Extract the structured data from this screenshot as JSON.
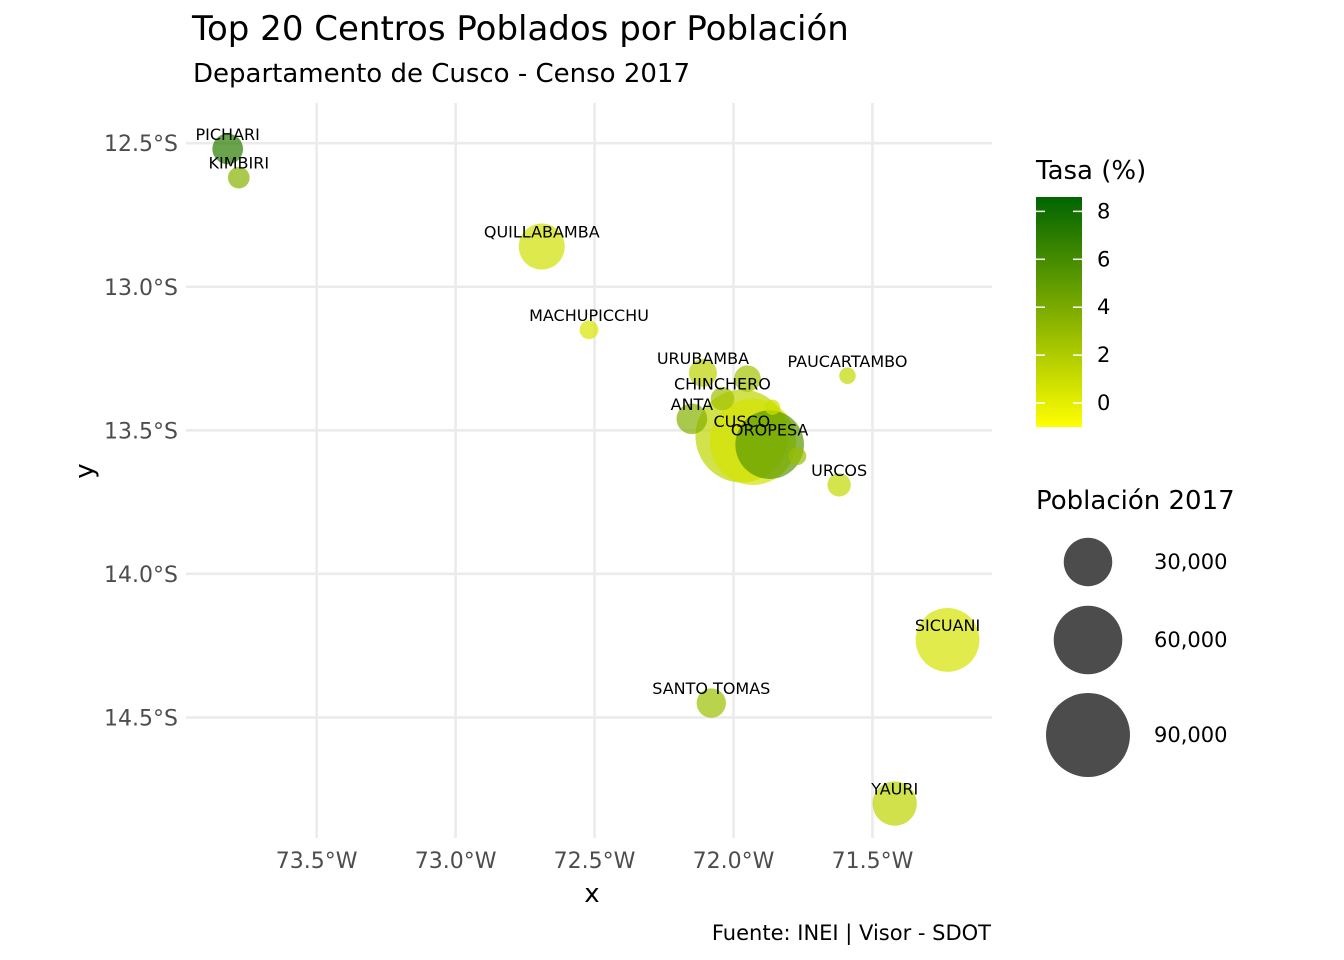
{
  "chart_data": {
    "type": "scatter",
    "title": "Top 20 Centros Poblados por Población",
    "subtitle": "Departamento de Cusco - Censo 2017",
    "caption": "Fuente: INEI | Visor - SDOT",
    "xlabel": "x",
    "ylabel": "y",
    "x_ticks": [
      "73.5°W",
      "73.0°W",
      "72.5°W",
      "72.0°W",
      "71.5°W"
    ],
    "x_tick_values": [
      -73.5,
      -73.0,
      -72.5,
      -72.0,
      -71.5
    ],
    "y_ticks": [
      "12.5°S",
      "13.0°S",
      "13.5°S",
      "14.0°S",
      "14.5°S"
    ],
    "y_tick_values": [
      -12.5,
      -13.0,
      -13.5,
      -14.0,
      -14.5
    ],
    "xlim": [
      -73.97,
      -71.07
    ],
    "ylim": [
      -14.92,
      -12.36
    ],
    "grid": true,
    "color_legend": {
      "title": "Tasa (%)",
      "ticks": [
        "8",
        "6",
        "4",
        "2",
        "0"
      ],
      "tick_values": [
        8,
        6,
        4,
        2,
        0
      ],
      "range": [
        -1,
        8.6
      ],
      "colors": [
        "#ffff00",
        "#7fad00",
        "#006400"
      ]
    },
    "size_legend": {
      "title": "Población 2017",
      "labels": [
        "30,000",
        "60,000",
        "90,000"
      ],
      "values": [
        30000,
        60000,
        90000
      ]
    },
    "points": [
      {
        "label": "PICHARI",
        "x": -73.82,
        "y": -12.52,
        "population": 12000,
        "rate": 7.0
      },
      {
        "label": "KIMBIRI",
        "x": -73.78,
        "y": -12.62,
        "population": 6000,
        "rate": 3.5
      },
      {
        "label": "QUILLABAMBA",
        "x": -72.69,
        "y": -12.86,
        "population": 27000,
        "rate": 0.8
      },
      {
        "label": "MACHUPICCHU",
        "x": -72.52,
        "y": -13.15,
        "population": 4500,
        "rate": 0.5
      },
      {
        "label": "URUBAMBA",
        "x": -72.11,
        "y": -13.3,
        "population": 10000,
        "rate": 1.6
      },
      {
        "label": "",
        "x": -71.95,
        "y": -13.32,
        "population": 9000,
        "rate": 2.5
      },
      {
        "label": "PAUCARTAMBO",
        "x": -71.59,
        "y": -13.31,
        "population": 3500,
        "rate": 1.3
      },
      {
        "label": "CHINCHERO",
        "x": -72.04,
        "y": -13.39,
        "population": 7000,
        "rate": 2.6
      },
      {
        "label": "",
        "x": -71.86,
        "y": -13.42,
        "population": 3000,
        "rate": 0.9
      },
      {
        "label": "ANTA",
        "x": -72.15,
        "y": -13.46,
        "population": 12000,
        "rate": 3.6
      },
      {
        "label": "CUSCO",
        "x": -71.97,
        "y": -13.52,
        "population": 110000,
        "rate": 1.4
      },
      {
        "label": "",
        "x": -71.93,
        "y": -13.54,
        "population": 95000,
        "rate": 0.6
      },
      {
        "label": "OROPESA",
        "x": -71.87,
        "y": -13.55,
        "population": 60000,
        "rate": 5.2
      },
      {
        "label": "",
        "x": -71.77,
        "y": -13.59,
        "population": 4000,
        "rate": 2.8
      },
      {
        "label": "URCOS",
        "x": -71.62,
        "y": -13.69,
        "population": 7000,
        "rate": 1.3
      },
      {
        "label": "SICUANI",
        "x": -71.23,
        "y": -14.23,
        "population": 52000,
        "rate": 0.6
      },
      {
        "label": "SANTO TOMAS",
        "x": -72.08,
        "y": -14.45,
        "population": 11000,
        "rate": 2.7
      },
      {
        "label": "YAURI",
        "x": -71.42,
        "y": -14.8,
        "population": 25000,
        "rate": 1.5
      }
    ]
  }
}
